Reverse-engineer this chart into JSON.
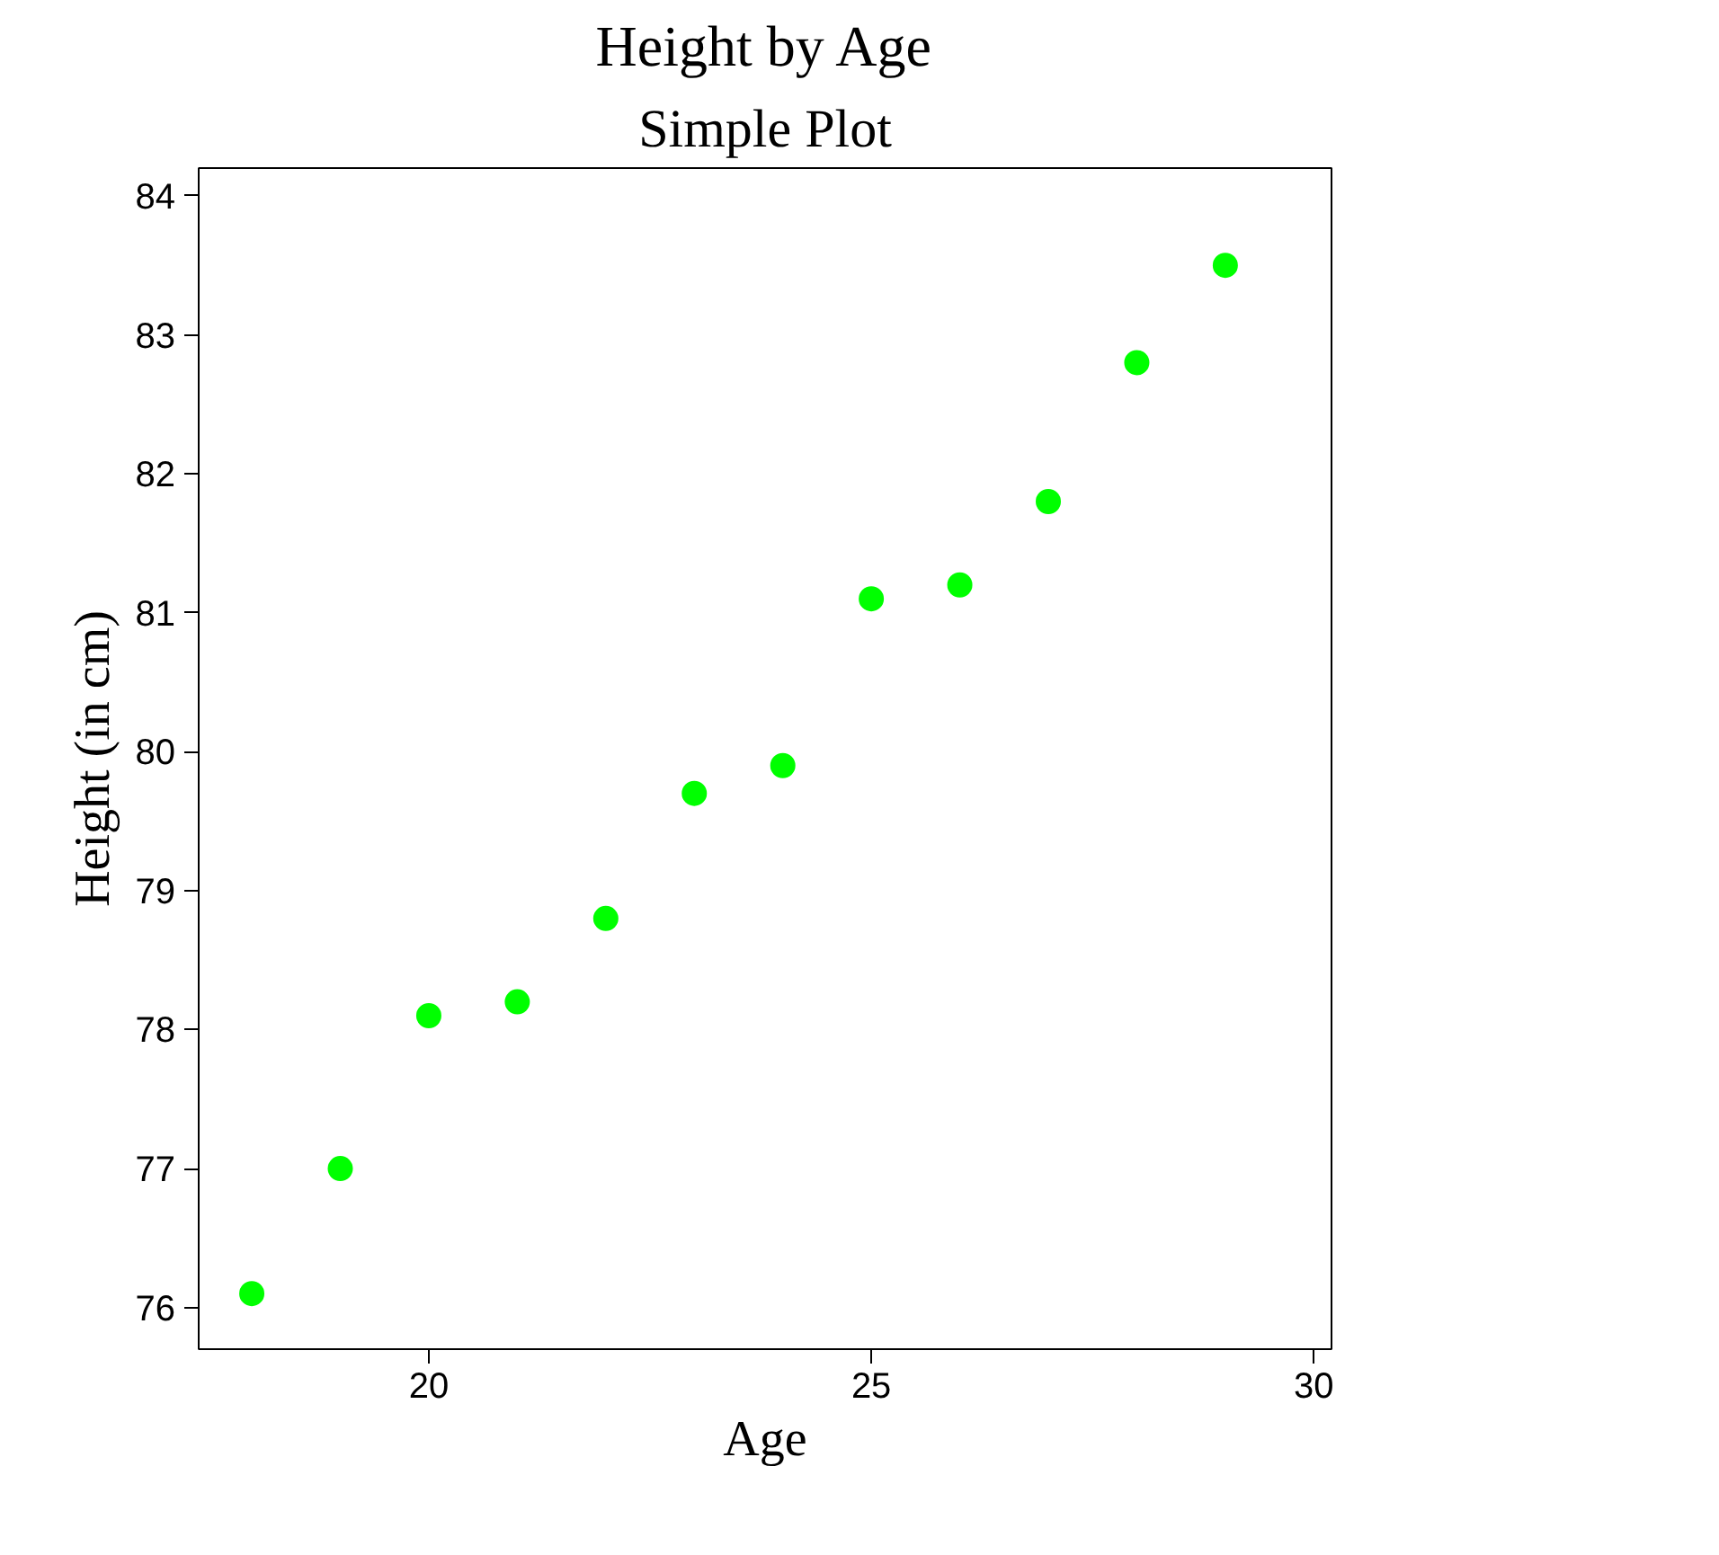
{
  "chart_data": {
    "type": "scatter",
    "title": "Height by Age",
    "subtitle": "Simple Plot",
    "xlabel": "Age",
    "ylabel": "Height (in cm)",
    "x": [
      18,
      19,
      20,
      21,
      22,
      23,
      24,
      25,
      26,
      27,
      28,
      29
    ],
    "series": [
      {
        "color": "#00ff00",
        "values": [
          76.1,
          77.0,
          78.1,
          78.2,
          78.8,
          79.7,
          79.9,
          81.1,
          81.2,
          81.8,
          82.8,
          83.5
        ]
      }
    ],
    "xlim": [
      17.4,
      30.2
    ],
    "ylim": [
      75.7,
      84.2
    ],
    "xticks": [
      20,
      25,
      30
    ],
    "yticks": [
      76,
      77,
      78,
      79,
      80,
      81,
      82,
      83,
      84
    ],
    "grid": false,
    "marker": "circle"
  }
}
